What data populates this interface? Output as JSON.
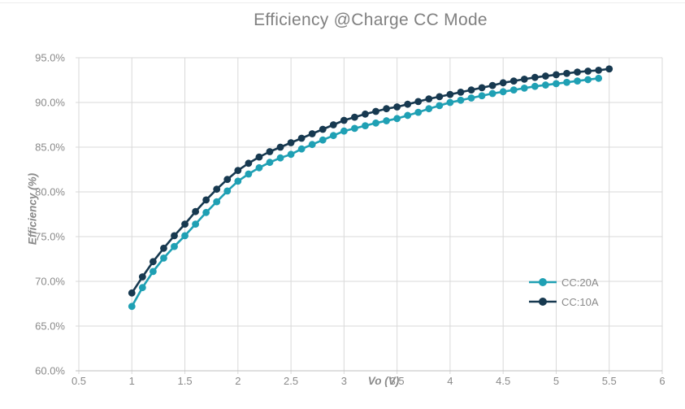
{
  "chart_data": {
    "type": "line",
    "title": "Efficiency @Charge CC Mode",
    "xlabel": "Vo (V)",
    "ylabel": "Efficiency (%)",
    "xlim": [
      0.5,
      6
    ],
    "ylim": [
      60,
      95
    ],
    "x_ticks": [
      0.5,
      1,
      1.5,
      2,
      2.5,
      3,
      3.5,
      4,
      4.5,
      5,
      5.5,
      6
    ],
    "x_tick_labels": [
      "0.5",
      "1",
      "1.5",
      "2",
      "2.5",
      "3",
      "3.5",
      "4",
      "4.5",
      "5",
      "5.5",
      "6"
    ],
    "y_ticks": [
      60,
      65,
      70,
      75,
      80,
      85,
      90,
      95
    ],
    "y_tick_labels": [
      "60.0%",
      "65.0%",
      "70.0%",
      "75.0%",
      "80.0%",
      "85.0%",
      "90.0%",
      "95.0%"
    ],
    "grid": true,
    "legend_position": "inside lower right",
    "colors": {
      "gridline": "#d9d9d9",
      "axis_line": "#bfbfbf",
      "tick_text": "#8a8a8a",
      "title_text": "#808080",
      "cc20a_teal": "#1fa0b4",
      "cc10a_navy": "#173950"
    },
    "series": [
      {
        "name": "CC:20A",
        "color": "#1fa0b4",
        "x": [
          1.0,
          1.1,
          1.2,
          1.3,
          1.4,
          1.5,
          1.6,
          1.7,
          1.8,
          1.9,
          2.0,
          2.1,
          2.2,
          2.3,
          2.4,
          2.5,
          2.6,
          2.7,
          2.8,
          2.9,
          3.0,
          3.1,
          3.2,
          3.3,
          3.4,
          3.5,
          3.6,
          3.7,
          3.8,
          3.9,
          4.0,
          4.1,
          4.2,
          4.3,
          4.4,
          4.5,
          4.6,
          4.7,
          4.8,
          4.9,
          5.0,
          5.1,
          5.2,
          5.3,
          5.4
        ],
        "values": [
          67.2,
          69.3,
          71.1,
          72.6,
          73.9,
          75.1,
          76.4,
          77.7,
          78.9,
          80.1,
          81.2,
          82.0,
          82.7,
          83.3,
          83.8,
          84.2,
          84.8,
          85.3,
          85.8,
          86.3,
          86.8,
          87.1,
          87.4,
          87.7,
          87.95,
          88.2,
          88.55,
          88.9,
          89.3,
          89.65,
          90.0,
          90.25,
          90.5,
          90.75,
          91.0,
          91.2,
          91.4,
          91.6,
          91.8,
          91.95,
          92.1,
          92.25,
          92.4,
          92.55,
          92.7
        ]
      },
      {
        "name": "CC:10A",
        "color": "#173950",
        "x": [
          1.0,
          1.1,
          1.2,
          1.3,
          1.4,
          1.5,
          1.6,
          1.7,
          1.8,
          1.9,
          2.0,
          2.1,
          2.2,
          2.3,
          2.4,
          2.5,
          2.6,
          2.7,
          2.8,
          2.9,
          3.0,
          3.1,
          3.2,
          3.3,
          3.4,
          3.5,
          3.6,
          3.7,
          3.8,
          3.9,
          4.0,
          4.1,
          4.2,
          4.3,
          4.4,
          4.5,
          4.6,
          4.7,
          4.8,
          4.9,
          5.0,
          5.1,
          5.2,
          5.3,
          5.4,
          5.5
        ],
        "values": [
          68.7,
          70.5,
          72.2,
          73.7,
          75.1,
          76.4,
          77.8,
          79.1,
          80.3,
          81.4,
          82.4,
          83.2,
          83.9,
          84.5,
          85.0,
          85.5,
          86.0,
          86.5,
          87.0,
          87.5,
          88.0,
          88.35,
          88.7,
          89.0,
          89.3,
          89.5,
          89.8,
          90.1,
          90.4,
          90.65,
          90.9,
          91.15,
          91.4,
          91.65,
          91.9,
          92.2,
          92.4,
          92.6,
          92.8,
          92.95,
          93.1,
          93.25,
          93.4,
          93.5,
          93.6,
          93.75
        ]
      }
    ]
  }
}
